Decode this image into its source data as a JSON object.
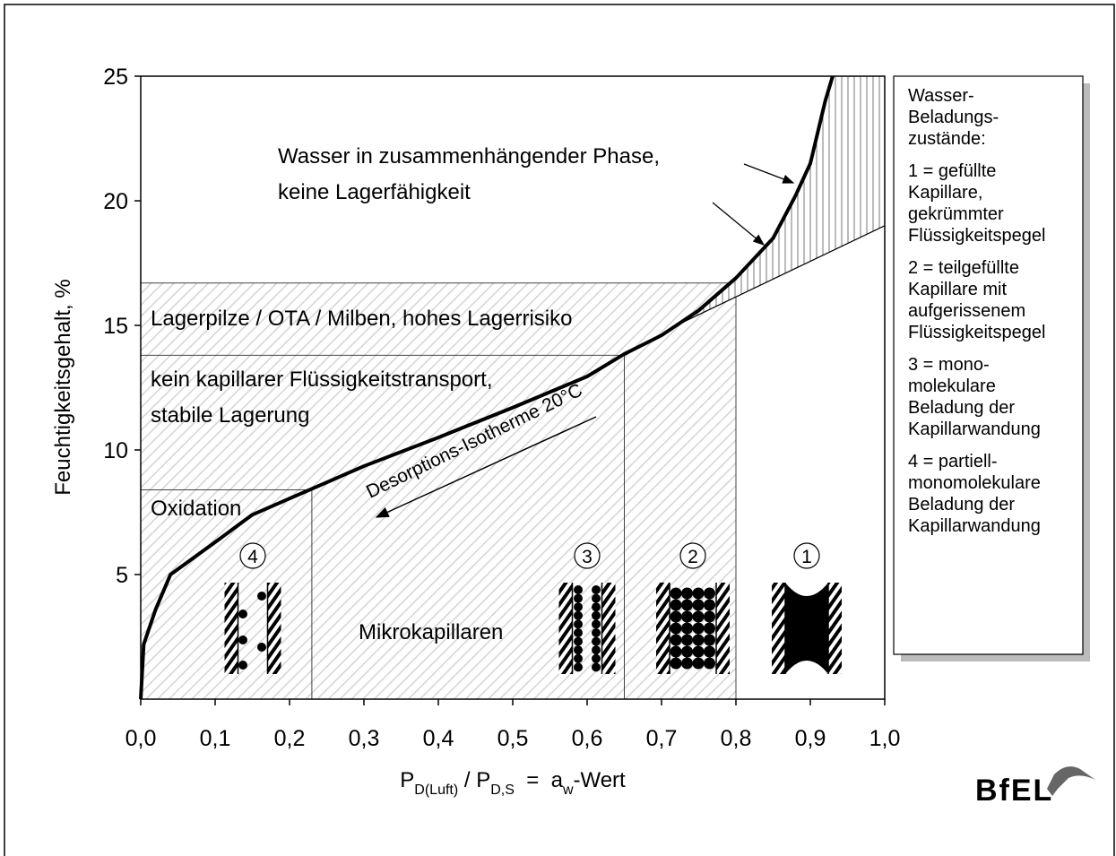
{
  "chart_data": {
    "type": "line",
    "y_label": "Feuchtigkeitsgehalt,  %",
    "x_label": [
      "P",
      "D(Luft)",
      " / P",
      "D,S",
      "  =  a",
      "w",
      "-Wert"
    ],
    "xlim": [
      0,
      1
    ],
    "ylim": [
      0,
      25
    ],
    "xticks": [
      {
        "value": 0,
        "label": "0,0"
      },
      {
        "value": 0.1,
        "label": "0,1"
      },
      {
        "value": 0.2,
        "label": "0,2"
      },
      {
        "value": 0.3,
        "label": "0,3"
      },
      {
        "value": 0.4,
        "label": "0,4"
      },
      {
        "value": 0.5,
        "label": "0,5"
      },
      {
        "value": 0.6,
        "label": "0,6"
      },
      {
        "value": 0.7,
        "label": "0,7"
      },
      {
        "value": 0.8,
        "label": "0,8"
      },
      {
        "value": 0.9,
        "label": "0,9"
      },
      {
        "value": 1,
        "label": "1,0"
      }
    ],
    "yticks": [
      5,
      10,
      15,
      20,
      25
    ],
    "series": [
      {
        "color": "#000000",
        "x": [
          0,
          0.004,
          0.02,
          0.04,
          0.1,
          0.15,
          0.2,
          0.3,
          0.4,
          0.5,
          0.6,
          0.65,
          0.7,
          0.75,
          0.8,
          0.85,
          0.88,
          0.9,
          0.92,
          0.93
        ],
        "values": [
          0,
          2.2,
          3.6,
          5,
          6.3,
          7.4,
          8.05,
          9.35,
          10.5,
          11.7,
          12.95,
          13.85,
          14.6,
          15.6,
          16.9,
          18.5,
          20.2,
          21.5,
          24,
          25
        ]
      },
      {
        "color": "#000000",
        "x": [
          0.72,
          1
        ],
        "values": [
          15,
          19
        ]
      }
    ],
    "regions": [
      {
        "label": [
          "Oxidation"
        ],
        "x": [
          0,
          0.23
        ],
        "y": [
          0,
          8.4
        ]
      },
      {
        "label": [
          "kein kapillarer Flüssigkeitstransport,",
          "stabile Lagerung"
        ],
        "x": [
          0,
          0.65
        ],
        "y": [
          0,
          13.8
        ]
      },
      {
        "label": [
          "Lagerpilze / OTA / Milben, hohes Lagerrisiko"
        ],
        "x": [
          0,
          0.8
        ],
        "y": [
          0,
          16.7
        ]
      }
    ],
    "annotations": [
      [
        "Wasser in zusammenhängender Phase,",
        "keine Lagerfähigkeit"
      ],
      [
        "Mikrokapillaren"
      ],
      [
        "Desorptions-Isotherme 20°C"
      ]
    ],
    "pore_labels": [
      "4",
      "3",
      "2",
      "1"
    ],
    "legend_box": {
      "heading": [
        "Wasser-",
        "Beladungs-",
        "zustände:"
      ],
      "items": [
        [
          "1 = gefüllte",
          "Kapillare,",
          "gekrümmter",
          "Flüssigkeitspegel"
        ],
        [
          "2 = teilgefüllte",
          "Kapillare mit",
          "aufgerissenem",
          "Flüssigkeitspegel"
        ],
        [
          "3 = mono-",
          "molekulare",
          "Beladung der",
          "Kapillarwandung"
        ],
        [
          "4 = partiell-",
          "monomolekulare",
          "Beladung der",
          "Kapillarwandung"
        ]
      ]
    },
    "logo": "BfEL"
  }
}
